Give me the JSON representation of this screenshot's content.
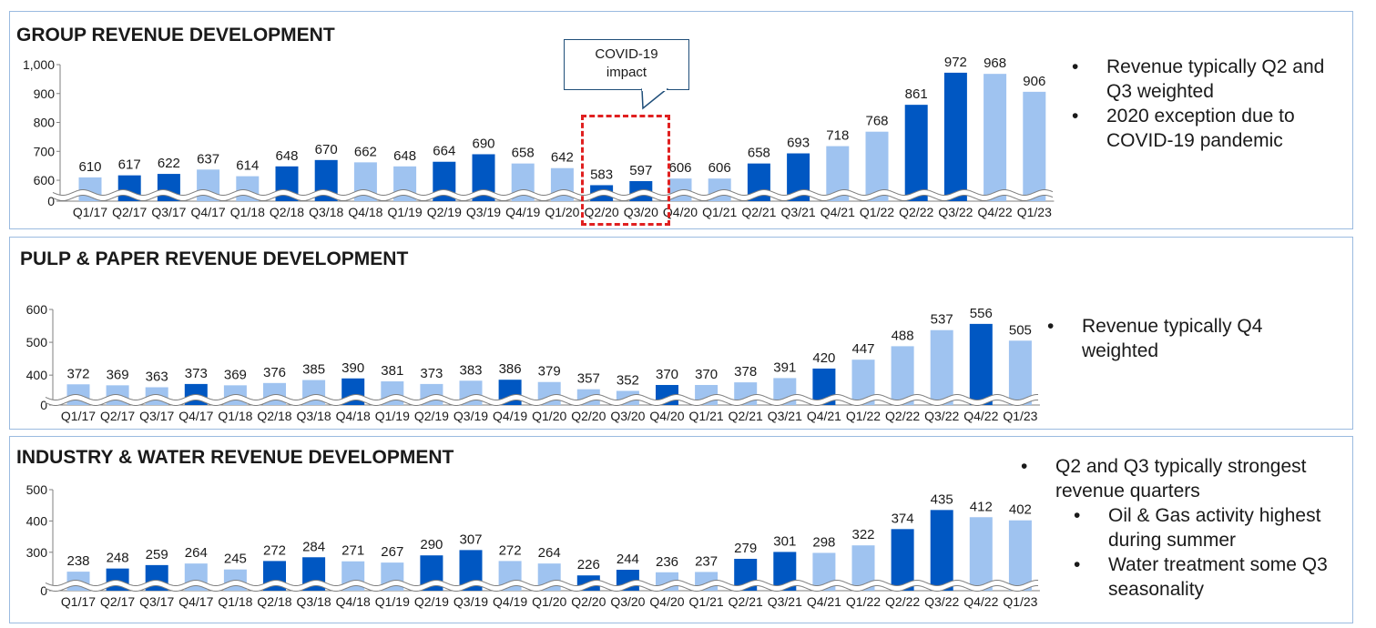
{
  "colors": {
    "dark_bar": "#0057c2",
    "light_bar": "#9fc3f0",
    "panel_border": "#9bbbe0",
    "text": "#1a1a1a",
    "highlight": "#e02020",
    "axis": "#7f7f7f"
  },
  "chart_data": [
    {
      "type": "bar",
      "title": "GROUP REVENUE DEVELOPMENT",
      "categories": [
        "Q1/17",
        "Q2/17",
        "Q3/17",
        "Q4/17",
        "Q1/18",
        "Q2/18",
        "Q3/18",
        "Q4/18",
        "Q1/19",
        "Q2/19",
        "Q3/19",
        "Q4/19",
        "Q1/20",
        "Q2/20",
        "Q3/20",
        "Q4/20",
        "Q1/21",
        "Q2/21",
        "Q3/21",
        "Q4/21",
        "Q1/22",
        "Q2/22",
        "Q3/22",
        "Q4/22",
        "Q1/23"
      ],
      "values": [
        610,
        617,
        622,
        637,
        614,
        648,
        670,
        662,
        648,
        664,
        690,
        658,
        642,
        583,
        597,
        606,
        606,
        658,
        693,
        718,
        768,
        861,
        972,
        968,
        906
      ],
      "value_labels": [
        "610",
        "617",
        "622",
        "637",
        "614",
        "648",
        "670",
        "662",
        "648",
        "664",
        "690",
        "658",
        "642",
        "583",
        "597",
        "606",
        "606",
        "658",
        "693",
        "718",
        "768",
        "861",
        "972",
        "968",
        "906"
      ],
      "highlighted": [
        false,
        true,
        true,
        false,
        false,
        true,
        true,
        false,
        false,
        true,
        true,
        false,
        false,
        true,
        true,
        false,
        false,
        true,
        true,
        false,
        false,
        true,
        true,
        false,
        false
      ],
      "axis_break": true,
      "ylim": [
        0,
        1000
      ],
      "broken_range": [
        575,
        1000
      ],
      "yticks": [
        0,
        600,
        700,
        800,
        900,
        1000
      ],
      "ytick_labels": [
        "0",
        "600",
        "700",
        "800",
        "900",
        "1,000"
      ],
      "xlabel": "",
      "ylabel": "",
      "bullets": [
        "Revenue typically Q2 and Q3 weighted",
        "2020 exception due to COVID-19 pandemic"
      ],
      "annotation": {
        "text": "COVID-19\nimpact",
        "highlighted_categories": [
          "Q2/20",
          "Q3/20"
        ]
      }
    },
    {
      "type": "bar",
      "title": "PULP & PAPER REVENUE DEVELOPMENT",
      "categories": [
        "Q1/17",
        "Q2/17",
        "Q3/17",
        "Q4/17",
        "Q1/18",
        "Q2/18",
        "Q3/18",
        "Q4/18",
        "Q1/19",
        "Q2/19",
        "Q3/19",
        "Q4/19",
        "Q1/20",
        "Q2/20",
        "Q3/20",
        "Q4/20",
        "Q1/21",
        "Q2/21",
        "Q3/21",
        "Q4/21",
        "Q1/22",
        "Q2/22",
        "Q3/22",
        "Q4/22",
        "Q1/23"
      ],
      "values": [
        372,
        369,
        363,
        373,
        369,
        376,
        385,
        390,
        381,
        373,
        383,
        386,
        379,
        357,
        352,
        370,
        370,
        378,
        391,
        420,
        447,
        488,
        537,
        556,
        505
      ],
      "value_labels": [
        "372",
        "369",
        "363",
        "373",
        "369",
        "376",
        "385",
        "390",
        "381",
        "373",
        "383",
        "386",
        "379",
        "357",
        "352",
        "370",
        "370",
        "378",
        "391",
        "420",
        "447",
        "488",
        "537",
        "556",
        "505"
      ],
      "highlighted": [
        false,
        false,
        false,
        true,
        false,
        false,
        false,
        true,
        false,
        false,
        false,
        true,
        false,
        false,
        false,
        true,
        false,
        false,
        false,
        true,
        false,
        false,
        false,
        true,
        false
      ],
      "axis_break": true,
      "ylim": [
        0,
        600
      ],
      "broken_range": [
        345,
        600
      ],
      "yticks": [
        0,
        400,
        500,
        600
      ],
      "ytick_labels": [
        "0",
        "400",
        "500",
        "600"
      ],
      "xlabel": "",
      "ylabel": "",
      "bullets": [
        "Revenue typically Q4 weighted"
      ]
    },
    {
      "type": "bar",
      "title": "INDUSTRY & WATER REVENUE DEVELOPMENT",
      "categories": [
        "Q1/17",
        "Q2/17",
        "Q3/17",
        "Q4/17",
        "Q1/18",
        "Q2/18",
        "Q3/18",
        "Q4/18",
        "Q1/19",
        "Q2/19",
        "Q3/19",
        "Q4/19",
        "Q1/20",
        "Q2/20",
        "Q3/20",
        "Q4/20",
        "Q1/21",
        "Q2/21",
        "Q3/21",
        "Q4/21",
        "Q1/22",
        "Q2/22",
        "Q3/22",
        "Q4/22",
        "Q1/23"
      ],
      "values": [
        238,
        248,
        259,
        264,
        245,
        272,
        284,
        271,
        267,
        290,
        307,
        272,
        264,
        226,
        244,
        236,
        237,
        279,
        301,
        298,
        322,
        374,
        435,
        412,
        402
      ],
      "value_labels": [
        "238",
        "248",
        "259",
        "264",
        "245",
        "272",
        "284",
        "271",
        "267",
        "290",
        "307",
        "272",
        "264",
        "226",
        "244",
        "236",
        "237",
        "279",
        "301",
        "298",
        "322",
        "374",
        "435",
        "412",
        "402"
      ],
      "highlighted": [
        false,
        true,
        true,
        false,
        false,
        true,
        true,
        false,
        false,
        true,
        true,
        false,
        false,
        true,
        true,
        false,
        false,
        true,
        true,
        false,
        false,
        true,
        true,
        false,
        false
      ],
      "axis_break": true,
      "ylim": [
        0,
        500
      ],
      "broken_range": [
        215,
        500
      ],
      "yticks": [
        0,
        300,
        400,
        500
      ],
      "ytick_labels": [
        "0",
        "300",
        "400",
        "500"
      ],
      "xlabel": "",
      "ylabel": "",
      "bullets": [
        "Q2 and Q3 typically strongest revenue quarters"
      ],
      "sub_bullets": [
        "Oil & Gas activity highest during summer",
        "Water treatment some Q3 seasonality"
      ]
    }
  ]
}
